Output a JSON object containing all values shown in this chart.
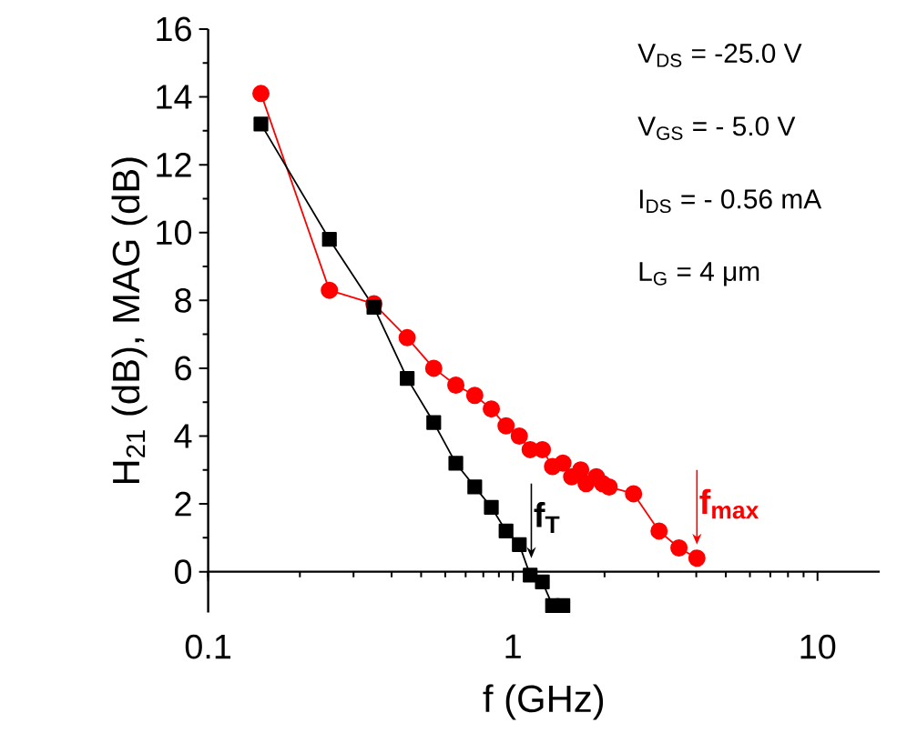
{
  "chart_data": {
    "type": "line",
    "xlabel": "f (GHz)",
    "ylabel": "H$_{21}$ (dB), MAG (dB)",
    "log": "x",
    "xlim": [
      0.1,
      16
    ],
    "ylim": [
      -1.2,
      16
    ],
    "xticks": [
      0.1,
      1,
      10
    ],
    "yticks": [
      0,
      2,
      4,
      6,
      8,
      10,
      12,
      14,
      16
    ],
    "grid": false,
    "series": [
      {
        "color": "#000000",
        "marker": "square",
        "x": [
          0.149,
          0.25,
          0.35,
          0.45,
          0.55,
          0.65,
          0.75,
          0.85,
          0.95,
          1.05,
          1.14,
          1.25,
          1.35,
          1.46
        ],
        "values": [
          13.2,
          9.8,
          7.8,
          5.7,
          4.4,
          3.2,
          2.5,
          1.9,
          1.2,
          0.8,
          -0.1,
          -0.3,
          -1.0,
          -1.0
        ]
      },
      {
        "color": "#ff0000",
        "marker": "circle",
        "x": [
          0.149,
          0.25,
          0.35,
          0.45,
          0.55,
          0.65,
          0.75,
          0.85,
          0.95,
          1.05,
          1.14,
          1.25,
          1.35,
          1.46,
          1.56,
          1.67,
          1.74,
          1.88,
          1.97,
          2.07,
          2.49,
          3.02,
          3.51,
          4.02
        ],
        "values": [
          14.1,
          8.3,
          7.9,
          6.9,
          6.0,
          5.5,
          5.2,
          4.8,
          4.3,
          4.0,
          3.6,
          3.6,
          3.1,
          3.2,
          2.8,
          3.0,
          2.6,
          2.8,
          2.6,
          2.5,
          2.3,
          1.2,
          0.7,
          0.4
        ]
      }
    ],
    "annotations": [
      "V$_{DS}$   = -25.0 V",
      "V$_{GS}$   = - 5.0 V",
      "I$_{DS}$    = - 0.56 mA",
      "L$_{G}$     = 4 μm",
      {
        "text": "f$_{T}$",
        "x": 1.15,
        "y": 0
      },
      {
        "text": "f$_{max}$",
        "x": 4.02,
        "y": 0.4
      }
    ]
  }
}
